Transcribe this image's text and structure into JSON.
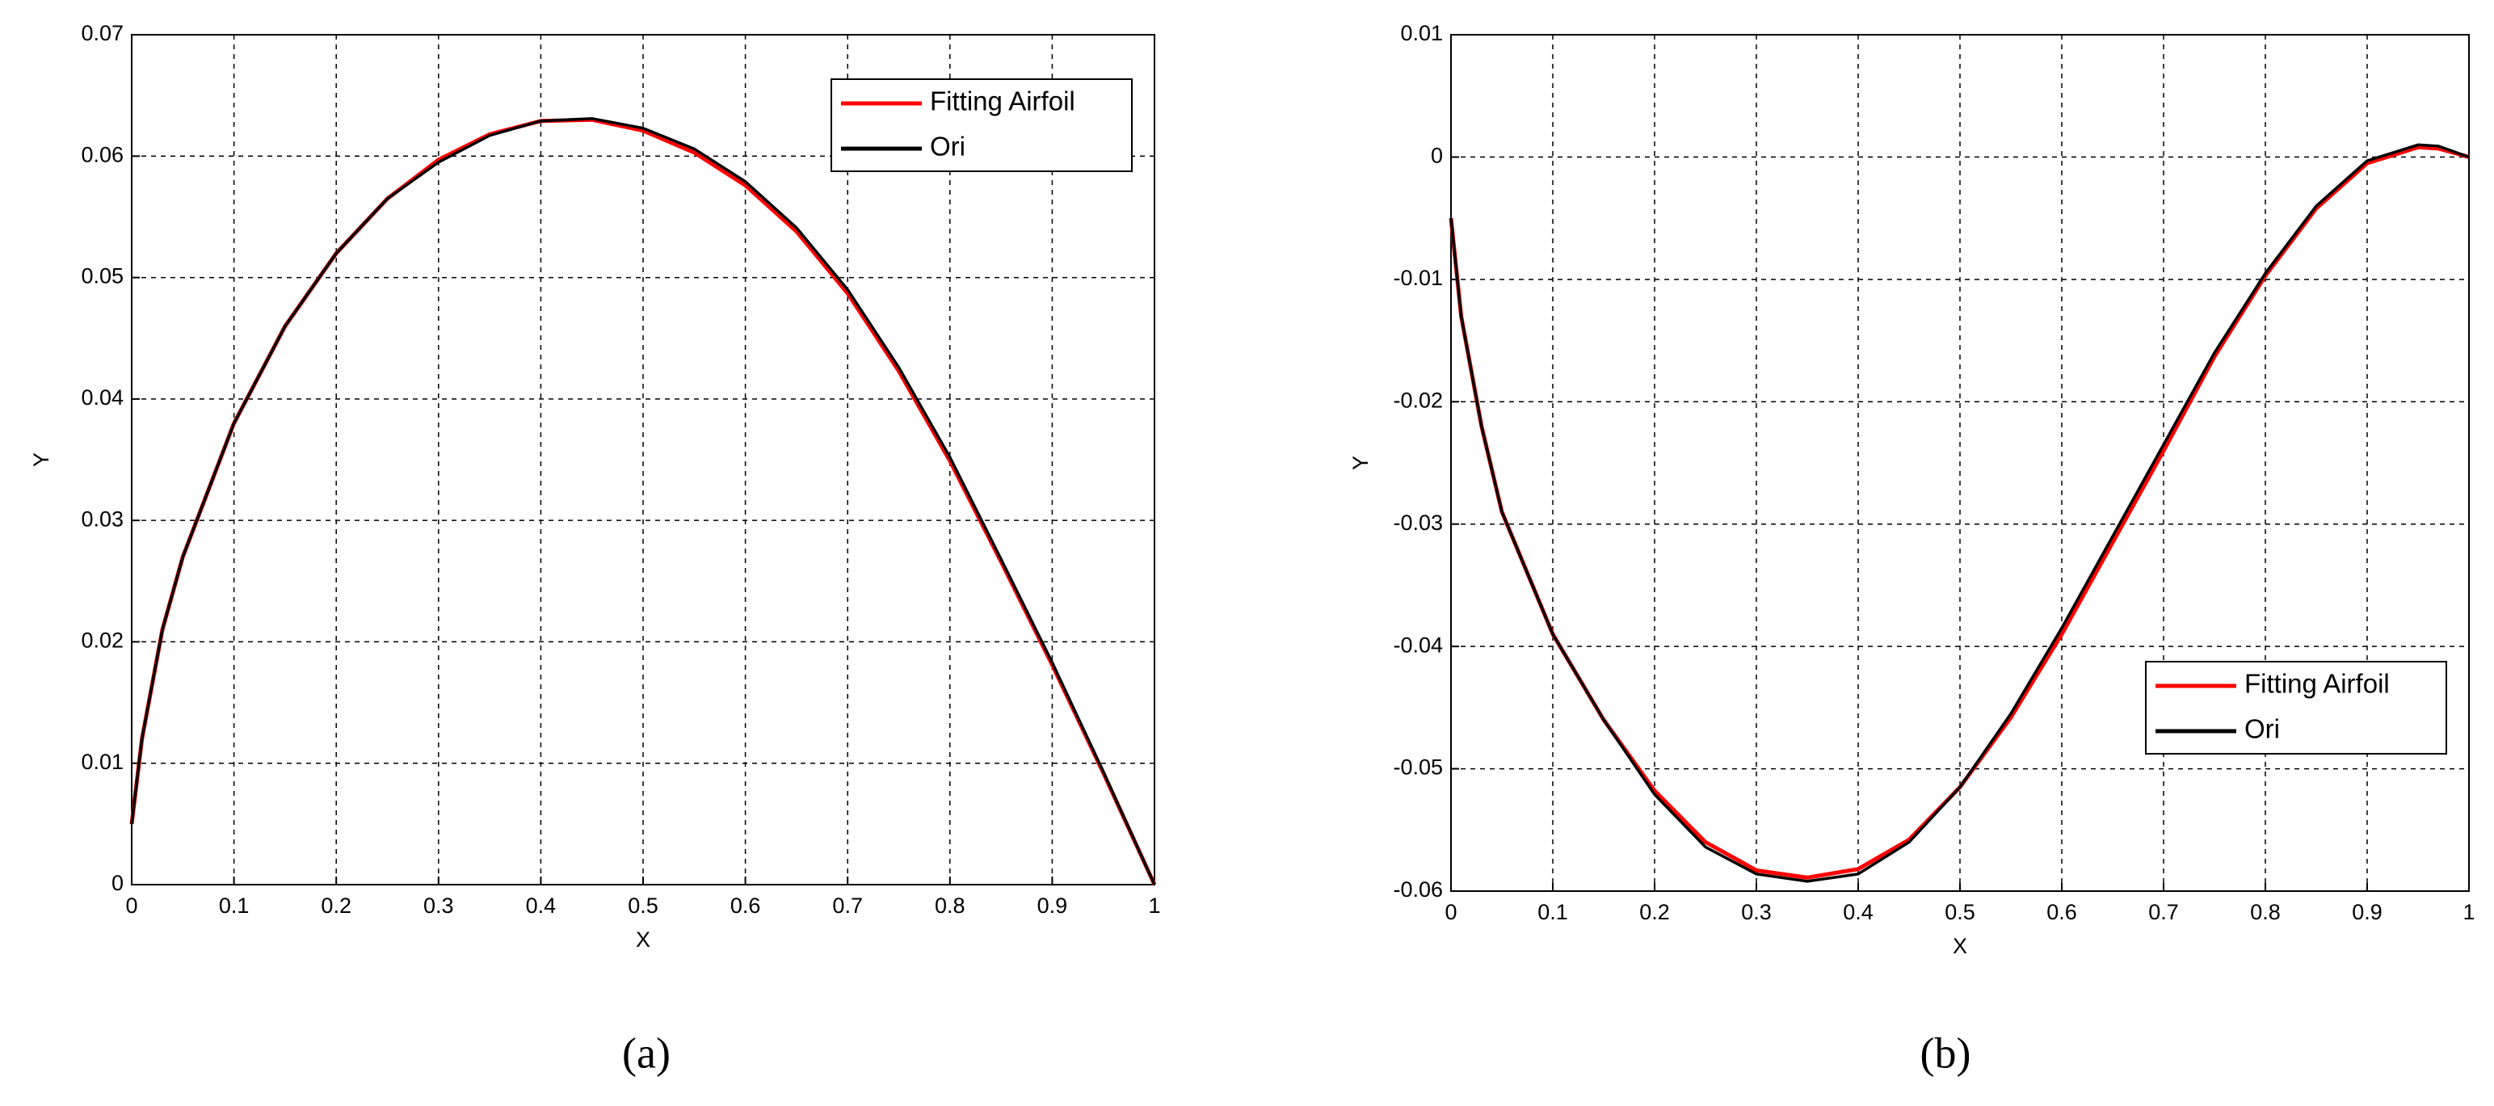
{
  "chart_data": [
    {
      "type": "line",
      "panel_label": "(a)",
      "x_label": "X",
      "y_label": "Y",
      "xlim": [
        0,
        1
      ],
      "ylim": [
        0,
        0.07
      ],
      "xticks": [
        0,
        0.1,
        0.2,
        0.3,
        0.4,
        0.5,
        0.6,
        0.7,
        0.8,
        0.9,
        1
      ],
      "yticks": [
        0,
        0.01,
        0.02,
        0.03,
        0.04,
        0.05,
        0.06,
        0.07
      ],
      "grid": true,
      "legend": "upper right",
      "x": [
        0,
        0.01,
        0.03,
        0.05,
        0.1,
        0.15,
        0.2,
        0.25,
        0.3,
        0.35,
        0.4,
        0.45,
        0.5,
        0.55,
        0.6,
        0.65,
        0.7,
        0.75,
        0.8,
        0.85,
        0.9,
        0.95,
        1
      ],
      "series": [
        {
          "name": "Fitting Airfoil",
          "color": "#ff0000",
          "values": [
            0.005,
            0.012,
            0.021,
            0.027,
            0.038,
            0.046,
            0.052,
            0.0565,
            0.0597,
            0.0618,
            0.0629,
            0.063,
            0.0621,
            0.0603,
            0.0576,
            0.0538,
            0.0487,
            0.0423,
            0.0349,
            0.0266,
            0.0181,
            0.0092,
            0
          ]
        },
        {
          "name": "Ori",
          "color": "#000000",
          "values": [
            0.005,
            0.012,
            0.021,
            0.027,
            0.038,
            0.046,
            0.052,
            0.0565,
            0.0595,
            0.0617,
            0.0629,
            0.0631,
            0.0623,
            0.0606,
            0.0579,
            0.0541,
            0.049,
            0.0426,
            0.0352,
            0.0268,
            0.0183,
            0.0093,
            0
          ]
        }
      ]
    },
    {
      "type": "line",
      "panel_label": "(b)",
      "x_label": "X",
      "y_label": "Y",
      "xlim": [
        0,
        1
      ],
      "ylim": [
        -0.06,
        0.01
      ],
      "xticks": [
        0,
        0.1,
        0.2,
        0.3,
        0.4,
        0.5,
        0.6,
        0.7,
        0.8,
        0.9,
        1
      ],
      "yticks": [
        -0.06,
        -0.05,
        -0.04,
        -0.03,
        -0.02,
        -0.01,
        0,
        0.01
      ],
      "grid": true,
      "legend": "lower right",
      "x": [
        0,
        0.01,
        0.03,
        0.05,
        0.1,
        0.15,
        0.2,
        0.25,
        0.3,
        0.35,
        0.4,
        0.45,
        0.5,
        0.55,
        0.6,
        0.65,
        0.7,
        0.75,
        0.8,
        0.85,
        0.9,
        0.95,
        0.97,
        1
      ],
      "series": [
        {
          "name": "Fitting Airfoil",
          "color": "#ff0000",
          "values": [
            -0.005,
            -0.013,
            -0.022,
            -0.029,
            -0.039,
            -0.046,
            -0.0518,
            -0.056,
            -0.0583,
            -0.0589,
            -0.0582,
            -0.0558,
            -0.0515,
            -0.0458,
            -0.039,
            -0.0315,
            -0.024,
            -0.0163,
            -0.0097,
            -0.0042,
            -0.0005,
            0.0008,
            0.0007,
            0
          ]
        },
        {
          "name": "Ori",
          "color": "#000000",
          "values": [
            -0.005,
            -0.013,
            -0.022,
            -0.029,
            -0.039,
            -0.046,
            -0.0521,
            -0.0564,
            -0.0586,
            -0.0592,
            -0.0586,
            -0.056,
            -0.0515,
            -0.0455,
            -0.0385,
            -0.031,
            -0.0235,
            -0.016,
            -0.0095,
            -0.004,
            -0.0003,
            0.001,
            0.0009,
            0
          ]
        }
      ]
    }
  ]
}
